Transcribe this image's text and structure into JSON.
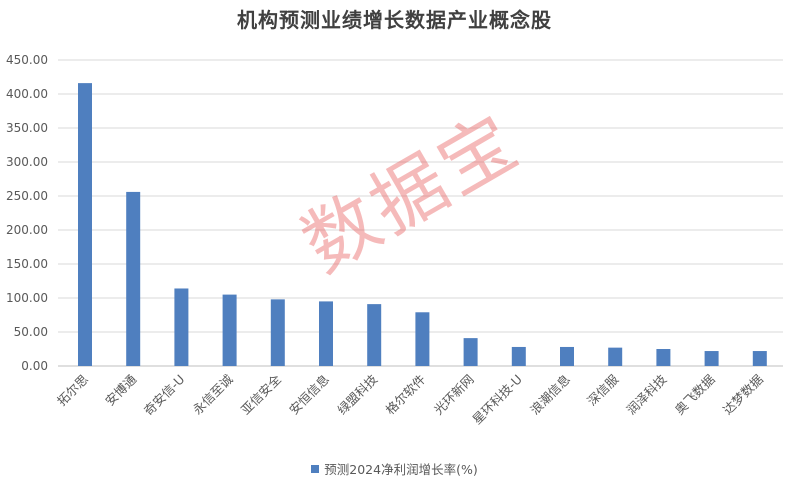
{
  "colors": {
    "bar": "#4f7fbf",
    "watermark": "#e85a5a"
  },
  "watermark": "数据宝",
  "chart_data": {
    "type": "bar",
    "title": "机构预测业绩增长数据产业概念股",
    "categories": [
      "拓尔思",
      "安博通",
      "奇安信-U",
      "永信至诚",
      "亚信安全",
      "安恒信息",
      "绿盟科技",
      "格尔软件",
      "光环新网",
      "星环科技-U",
      "浪潮信息",
      "深信服",
      "润泽科技",
      "奥飞数据",
      "达梦数据"
    ],
    "series": [
      {
        "name": "预测2024净利润增长率(%)",
        "values": [
          416,
          256,
          114,
          105,
          98,
          95,
          91,
          79,
          41,
          28,
          28,
          27,
          25,
          22,
          22
        ]
      }
    ],
    "yticks": [
      "0.00",
      "50.00",
      "100.00",
      "150.00",
      "200.00",
      "250.00",
      "300.00",
      "350.00",
      "400.00",
      "450.00"
    ],
    "ylim": [
      0,
      450
    ],
    "grid": true,
    "legend_position": "bottom"
  }
}
